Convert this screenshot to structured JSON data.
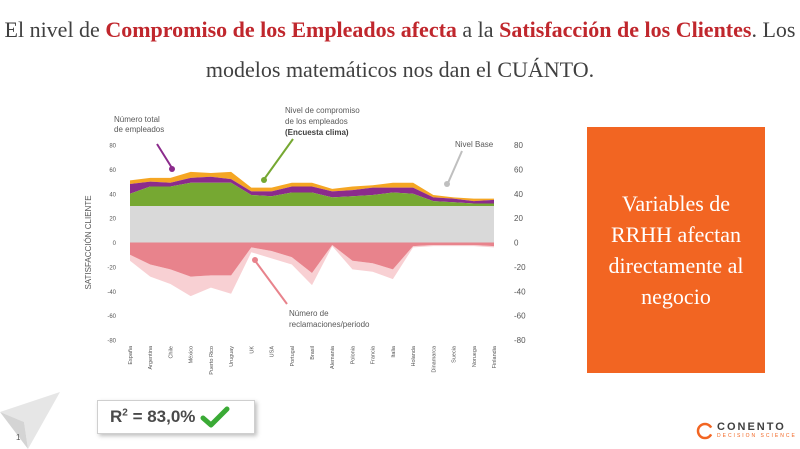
{
  "title": {
    "part1": "El nivel de ",
    "highlight1": "Compromiso de los Empleados afecta",
    "part2": " a la ",
    "highlight2": "Satisfacción de los Clientes",
    "part3": ". Los modelos matemáticos nos dan el CUÁNTO."
  },
  "callout": "Variables de RRHH afectan directamente al negocio",
  "r2": {
    "prefix": "R",
    "sup": "2",
    "suffix": " = 83,0%"
  },
  "page_number": "1",
  "logo": {
    "name": "CONENTO",
    "tagline": "DECISION SCIENCE"
  },
  "colors": {
    "accent": "#c0272d",
    "orange": "#f26522",
    "base": "#d9d9d9",
    "green": "#76a832",
    "purple": "#8b2b8c",
    "yellow": "#f5a623",
    "pink_dark": "#e8838c",
    "pink_light": "#f8d0d3"
  },
  "chart_data": {
    "type": "area",
    "ylabel": "SATISFACCIÓN CLIENTE",
    "ylim": [
      -80,
      80
    ],
    "yticks": [
      -80,
      -60,
      -40,
      -20,
      0,
      20,
      40,
      60,
      80
    ],
    "categories": [
      "España",
      "Argentina",
      "Chile",
      "México",
      "Puerto Rico",
      "Uruguay",
      "UK",
      "USA",
      "Portugal",
      "Brasil",
      "Alemania",
      "Polonia",
      "Francia",
      "Italia",
      "Holanda",
      "Dinamarca",
      "Suecia",
      "Noruega",
      "Finlandia"
    ],
    "annotations": {
      "total_empleados": "Número total de empleados",
      "compromiso_1": "Nivel de compromiso",
      "compromiso_2": "de los empleados",
      "compromiso_3": "(Encuesta clima)",
      "nivel_base": "Nivel Base",
      "reclamaciones_1": "Número de",
      "reclamaciones_2": "reclamaciones/periodo"
    },
    "series": [
      {
        "key": "base",
        "values": [
          30,
          30,
          30,
          30,
          30,
          30,
          30,
          30,
          30,
          30,
          30,
          30,
          30,
          30,
          30,
          30,
          30,
          30,
          30
        ]
      },
      {
        "key": "compromiso",
        "values": [
          10,
          16,
          16,
          19,
          19,
          19,
          9,
          8,
          11,
          11,
          7,
          8,
          9,
          11,
          10,
          4,
          3,
          2,
          2
        ]
      },
      {
        "key": "total",
        "values": [
          8,
          4,
          3,
          4,
          5,
          3,
          3,
          4,
          5,
          5,
          5,
          5,
          6,
          4,
          5,
          3,
          3,
          2,
          3
        ]
      },
      {
        "key": "nivel",
        "values": [
          3,
          3,
          4,
          5,
          3,
          6,
          3,
          3,
          3,
          3,
          2,
          3,
          2,
          4,
          4,
          2,
          1,
          2,
          1
        ]
      },
      {
        "key": "reclamaciones",
        "values": [
          -10,
          -18,
          -22,
          -28,
          -27,
          -27,
          -4,
          -7,
          -12,
          -25,
          -2,
          -15,
          -17,
          -22,
          -3,
          -2,
          -2,
          -2,
          -3
        ]
      },
      {
        "key": "reclamaciones_extra",
        "values": [
          -5,
          -10,
          -12,
          -16,
          -10,
          -15,
          -4,
          -6,
          -6,
          -10,
          -1,
          -7,
          -7,
          -8,
          -1,
          -1,
          -1,
          -1,
          -1
        ]
      }
    ]
  }
}
